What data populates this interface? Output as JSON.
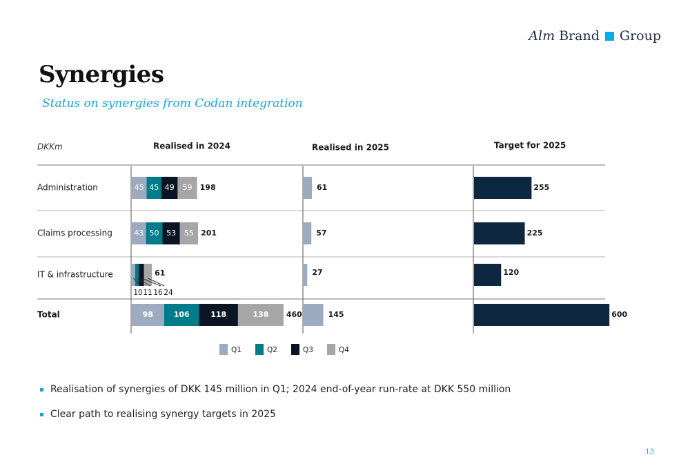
{
  "logo": {
    "part1": "Alm",
    "part2": "Brand",
    "part3": "Group"
  },
  "title": "Synergies",
  "subtitle": "Status on synergies from Codan integration",
  "colors": {
    "q1": "#9cabc0",
    "q2": "#007b8a",
    "q3": "#0a1423",
    "q4": "#a6a6a6",
    "dark": "#0d2741",
    "accent": "#19a4d9"
  },
  "chart_data": {
    "type": "bar",
    "unit_label": "DKKm",
    "panels": [
      "Realised in 2024",
      "Realised in 2025",
      "Target for 2025"
    ],
    "categories": [
      "Administration",
      "Claims processing",
      "IT & infrastructure",
      "Total"
    ],
    "realised_2024": {
      "series": [
        {
          "name": "Q1",
          "values": [
            45,
            43,
            10,
            98
          ]
        },
        {
          "name": "Q2",
          "values": [
            45,
            50,
            11,
            106
          ]
        },
        {
          "name": "Q3",
          "values": [
            49,
            53,
            16,
            118
          ]
        },
        {
          "name": "Q4",
          "values": [
            59,
            55,
            24,
            138
          ]
        }
      ],
      "totals": [
        198,
        201,
        61,
        460
      ]
    },
    "realised_2025": {
      "values": [
        61,
        57,
        27,
        145
      ]
    },
    "target_2025": {
      "values": [
        255,
        225,
        120,
        600
      ]
    },
    "legend": [
      "Q1",
      "Q2",
      "Q3",
      "Q4"
    ]
  },
  "bullets": [
    "Realisation of synergies of DKK 145 million in Q1; 2024 end-of-year run-rate at DKK 550 million",
    "Clear path to realising synergy targets in 2025"
  ],
  "page_number": "13"
}
